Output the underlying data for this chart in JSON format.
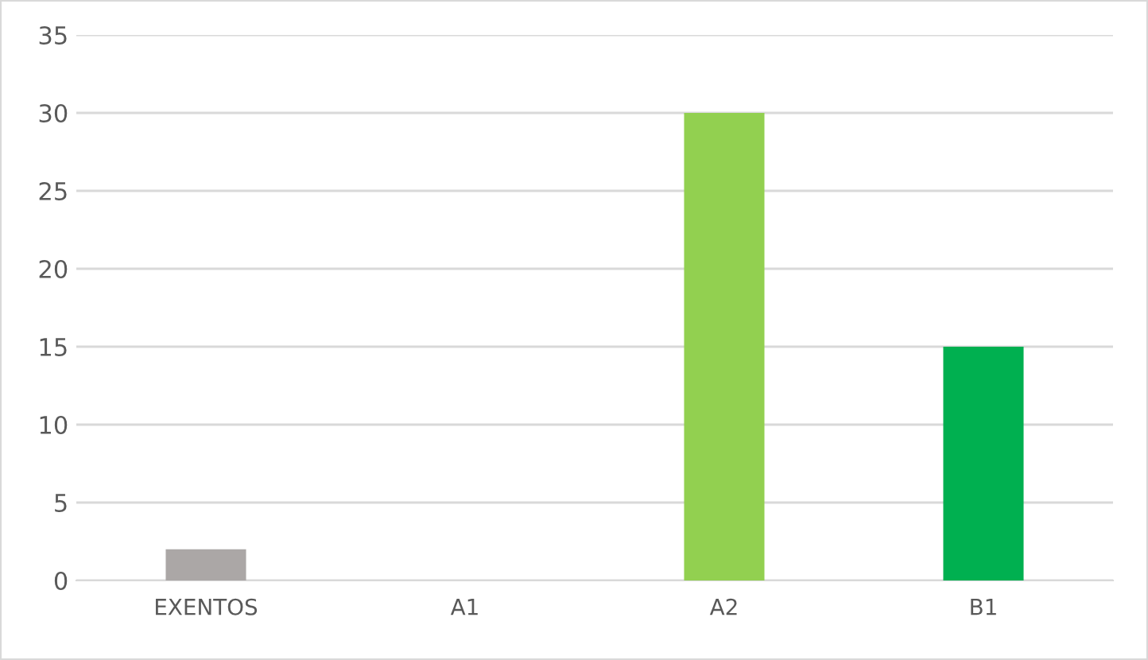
{
  "chart_data": {
    "type": "bar",
    "categories": [
      "EXENTOS",
      "A1",
      "A2",
      "B1"
    ],
    "values": [
      2,
      0,
      30,
      15
    ],
    "colors": [
      "#aba7a6",
      "#92d050",
      "#92d050",
      "#00b050"
    ],
    "ylim": [
      0,
      35
    ],
    "yticks": [
      0,
      5,
      10,
      15,
      20,
      25,
      30,
      35
    ],
    "grid": "y"
  }
}
